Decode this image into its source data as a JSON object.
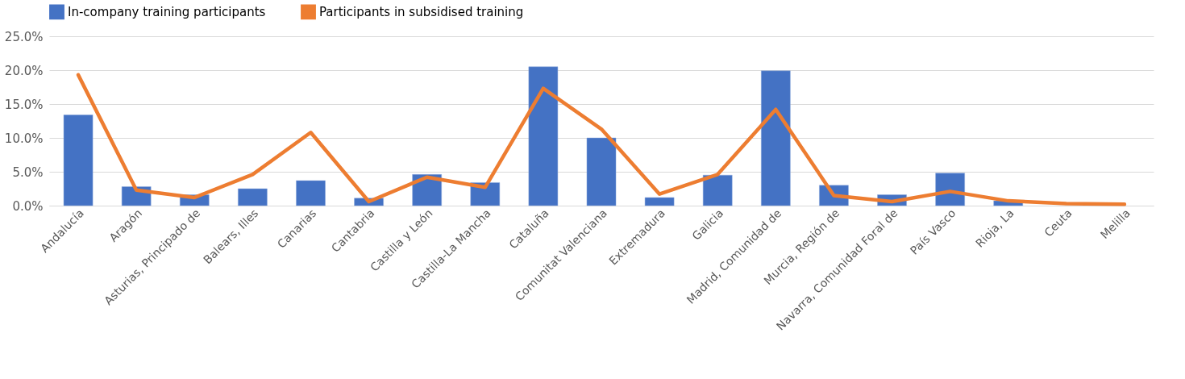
{
  "chart_data": {
    "type": "bar",
    "categories": [
      "Andalucía",
      "Aragón",
      "Asturias, Principado de",
      "Balears, Illes",
      "Canarias",
      "Cantabria",
      "Castilla y León",
      "Castilla-La Mancha",
      "Cataluña",
      "Comunitat Valenciana",
      "Extremadura",
      "Galicia",
      "Madrid, Comunidad de",
      "Murcia, Región de",
      "Navarra, Comunidad Foral de",
      "País Vasco",
      "Rioja, La",
      "Ceuta",
      "Melilla"
    ],
    "series": [
      {
        "name": "In-company training participants",
        "color": "#4472c4",
        "values": [
          13.4,
          2.8,
          1.6,
          2.5,
          3.7,
          1.1,
          4.6,
          3.4,
          20.5,
          10.0,
          1.2,
          4.5,
          19.9,
          3.0,
          1.6,
          4.8,
          0.7,
          null,
          null
        ]
      },
      {
        "name": "Participants in subsidised training",
        "type": "line",
        "color": "#ed7d31",
        "values": [
          19.3,
          2.3,
          1.2,
          4.6,
          10.8,
          0.6,
          4.2,
          2.7,
          17.3,
          11.3,
          1.7,
          4.6,
          14.2,
          1.5,
          0.6,
          2.1,
          0.7,
          0.3,
          0.2
        ]
      }
    ],
    "ylim": [
      0,
      25
    ],
    "yticks": [
      {
        "value": 0,
        "label": "0.0%"
      },
      {
        "value": 5,
        "label": "5.0%"
      },
      {
        "value": 10,
        "label": "10.0%"
      },
      {
        "value": 15,
        "label": "15.0%"
      },
      {
        "value": 20,
        "label": "20.0%"
      },
      {
        "value": 25,
        "label": "25.0%"
      }
    ],
    "grid": "y",
    "legend": "top"
  }
}
